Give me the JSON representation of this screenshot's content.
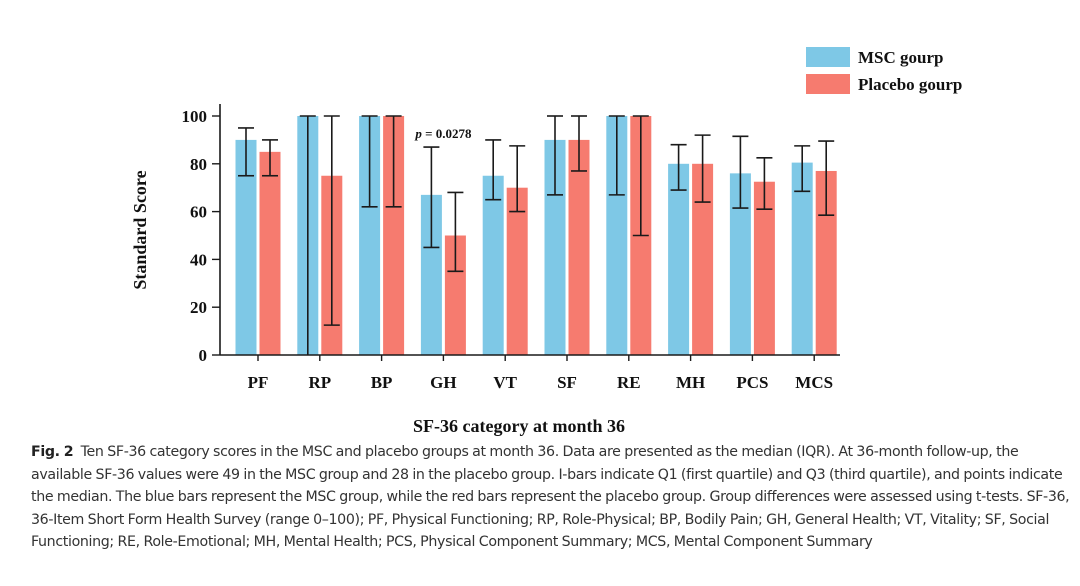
{
  "chart_data": {
    "type": "bar",
    "title": "",
    "xlabel": "SF-36 category at month 36",
    "ylabel": "Standard Score",
    "ylim": [
      0,
      100
    ],
    "yticks": [
      0,
      20,
      40,
      60,
      80,
      100
    ],
    "grid": false,
    "legend_position": "top-right",
    "categories": [
      "PF",
      "RP",
      "BP",
      "GH",
      "VT",
      "SF",
      "RE",
      "MH",
      "PCS",
      "MCS"
    ],
    "series": [
      {
        "name": "MSC gourp",
        "color": "#7ec8e6",
        "values": [
          90,
          100,
          100,
          67,
          75,
          90,
          100,
          80,
          76,
          80.5
        ],
        "q1": [
          75,
          0,
          62,
          45,
          65,
          67,
          67,
          69,
          61.5,
          68.5
        ],
        "q3": [
          95,
          100,
          100,
          87,
          90,
          100,
          100,
          88,
          91.5,
          87.5
        ]
      },
      {
        "name": "Placebo gourp",
        "color": "#f67b6f",
        "values": [
          85,
          75,
          100,
          50,
          70,
          90,
          100,
          80,
          72.5,
          77
        ],
        "q1": [
          75,
          12.5,
          62,
          35,
          60,
          77,
          50,
          64,
          61,
          58.5
        ],
        "q3": [
          90,
          100,
          100,
          68,
          87.5,
          100,
          100,
          92,
          82.5,
          89.5
        ]
      }
    ],
    "annotations": [
      {
        "category": "GH",
        "text_italic": "p",
        "text": " = 0.0278"
      }
    ]
  },
  "caption": {
    "label": "Fig. 2",
    "text": "Ten SF-36 category scores in the MSC and placebo groups at month 36. Data are presented as the median (IQR). At 36-month follow-up, the available SF-36 values were 49 in the MSC group and 28 in the placebo group. I-bars indicate Q1 (first quartile) and Q3 (third quartile), and points indicate the median. The blue bars represent the MSC group, while the red bars represent the placebo group. Group differences were assessed using t-tests. SF-36, 36-Item Short Form Health Survey (range 0–100); PF, Physical Functioning; RP, Role-Physical; BP, Bodily Pain; GH, General Health; VT, Vitality; SF, Social Functioning; RE, Role-Emotional; MH, Mental Health; PCS, Physical Component Summary; MCS, Mental Component Summary"
  }
}
